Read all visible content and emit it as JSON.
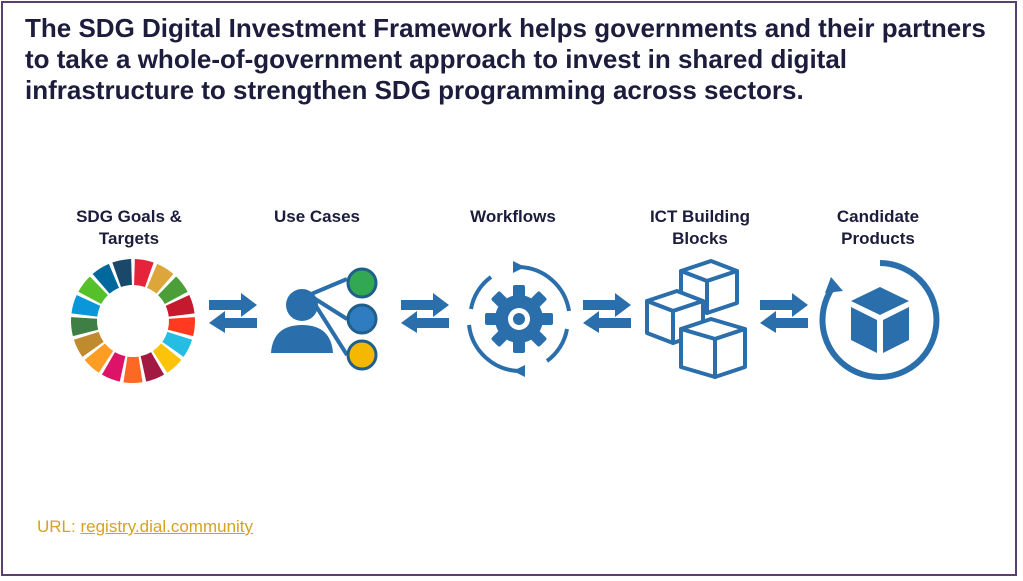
{
  "headline": "The SDG Digital Investment Framework helps governments and their partners to take a whole-of-government approach to invest in shared digital infrastructure to strengthen SDG programming across sectors.",
  "steps": [
    {
      "label": "SDG Goals & Targets",
      "icon": "sdg-wheel-icon"
    },
    {
      "label": "Use Cases",
      "icon": "use-cases-icon"
    },
    {
      "label": "Workflows",
      "icon": "workflow-gear-icon"
    },
    {
      "label": "ICT Building Blocks",
      "icon": "building-blocks-icon"
    },
    {
      "label": "Candidate Products",
      "icon": "product-box-icon"
    }
  ],
  "url": {
    "prefix": "URL: ",
    "link": "registry.dial.community"
  },
  "colors": {
    "accent_blue": "#2a6fab",
    "frame": "#5b3f73",
    "text": "#1c1c3c",
    "url": "#d6a21f",
    "sdg_wheel": [
      "#e5243b",
      "#dda63a",
      "#4c9f38",
      "#c5192d",
      "#ff3a21",
      "#26bde2",
      "#fcc30b",
      "#a21942",
      "#fd6925",
      "#dd1367",
      "#fd9d24",
      "#bf8b2e",
      "#3f7e44",
      "#0a97d9",
      "#56c02b",
      "#00689d",
      "#19486a"
    ]
  }
}
